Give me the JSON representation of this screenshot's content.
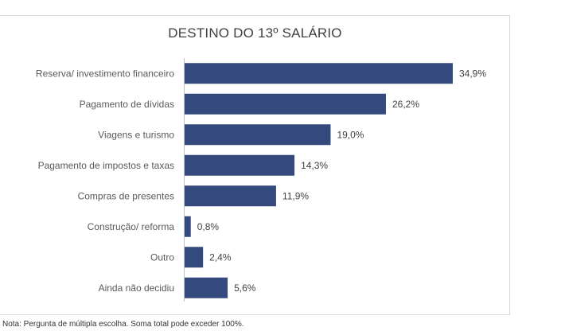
{
  "chart_data": {
    "type": "bar",
    "orientation": "horizontal",
    "title": "DESTINO DO 13º SALÁRIO",
    "categories": [
      "Reserva/ investimento financeiro",
      "Pagamento de dívidas",
      "Viagens e turismo",
      "Pagamento de impostos e taxas",
      "Compras de presentes",
      "Construção/ reforma",
      "Outro",
      "Ainda não decidiu"
    ],
    "values": [
      34.9,
      26.2,
      19.0,
      14.3,
      11.9,
      0.8,
      2.4,
      5.6
    ],
    "value_labels": [
      "34,9%",
      "26,2%",
      "19,0%",
      "14,3%",
      "11,9%",
      "0,8%",
      "2,4%",
      "5,6%"
    ],
    "xlim": [
      0,
      45
    ],
    "grid": false,
    "bar_color": "#34497d"
  },
  "note": "Nota: Pergunta de múltipla escolha. Soma total pode exceder 100%."
}
